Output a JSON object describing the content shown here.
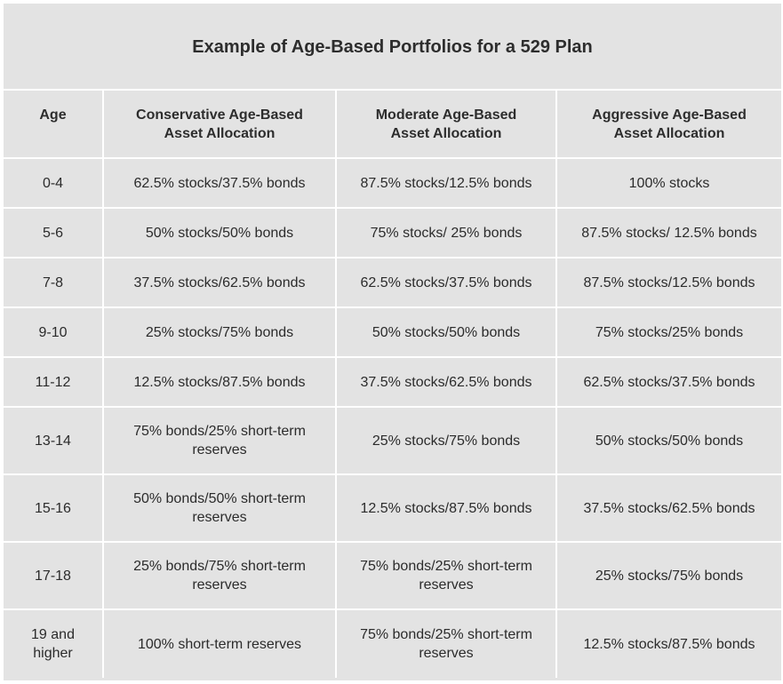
{
  "title": "Example of Age-Based Portfolios for a 529 Plan",
  "headers": {
    "age": "Age",
    "conservative": [
      "Conservative Age-Based",
      "Asset Allocation"
    ],
    "moderate": [
      "Moderate Age-Based",
      "Asset Allocation"
    ],
    "aggressive": [
      "Aggressive Age-Based",
      "Asset Allocation"
    ]
  },
  "rows": [
    {
      "age": [
        "0-4"
      ],
      "conservative": [
        "62.5% stocks/37.5% bonds"
      ],
      "moderate": [
        "87.5% stocks/12.5% bonds"
      ],
      "aggressive": [
        "100% stocks"
      ]
    },
    {
      "age": [
        "5-6"
      ],
      "conservative": [
        "50% stocks/50% bonds"
      ],
      "moderate": [
        "75% stocks/ 25% bonds"
      ],
      "aggressive": [
        "87.5% stocks/ 12.5% bonds"
      ]
    },
    {
      "age": [
        "7-8"
      ],
      "conservative": [
        "37.5% stocks/62.5% bonds"
      ],
      "moderate": [
        "62.5% stocks/37.5% bonds"
      ],
      "aggressive": [
        "87.5% stocks/12.5% bonds"
      ]
    },
    {
      "age": [
        "9-10"
      ],
      "conservative": [
        "25% stocks/75% bonds"
      ],
      "moderate": [
        "50% stocks/50% bonds"
      ],
      "aggressive": [
        "75% stocks/25% bonds"
      ]
    },
    {
      "age": [
        "11-12"
      ],
      "conservative": [
        "12.5% stocks/87.5% bonds"
      ],
      "moderate": [
        "37.5% stocks/62.5% bonds"
      ],
      "aggressive": [
        "62.5% stocks/37.5% bonds"
      ]
    },
    {
      "age": [
        "13-14"
      ],
      "conservative": [
        "75% bonds/25% short-term",
        "reserves"
      ],
      "moderate": [
        "25% stocks/75% bonds"
      ],
      "aggressive": [
        "50% stocks/50% bonds"
      ]
    },
    {
      "age": [
        "15-16"
      ],
      "conservative": [
        "50% bonds/50% short-term",
        "reserves"
      ],
      "moderate": [
        "12.5% stocks/87.5% bonds"
      ],
      "aggressive": [
        "37.5% stocks/62.5% bonds"
      ]
    },
    {
      "age": [
        "17-18"
      ],
      "conservative": [
        "25% bonds/75% short-term",
        "reserves"
      ],
      "moderate": [
        "75% bonds/25% short-term",
        "reserves"
      ],
      "aggressive": [
        "25% stocks/75% bonds"
      ]
    },
    {
      "age": [
        "19 and",
        "higher"
      ],
      "conservative": [
        "100% short-term reserves"
      ],
      "moderate": [
        "75% bonds/25% short-term",
        "reserves"
      ],
      "aggressive": [
        "12.5% stocks/87.5% bonds"
      ]
    }
  ]
}
